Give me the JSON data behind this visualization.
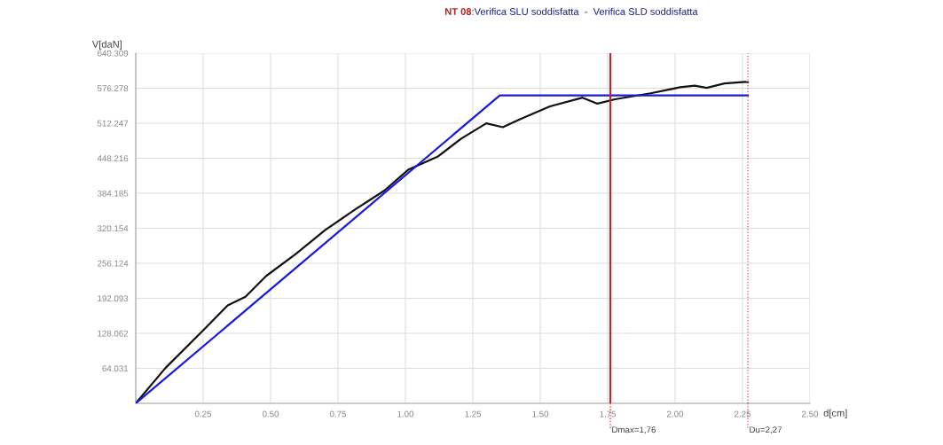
{
  "chart_data": {
    "type": "line",
    "title": "NT 08",
    "subtitle": ":Verifica SLU soddisfatta  -  Verifica SLD soddisfatta",
    "xlabel": "d[cm]",
    "ylabel": "V[daN]",
    "xlim": [
      0,
      2.5
    ],
    "xticks": [
      0.25,
      {
        "value": 0.5,
        "label": "0.50"
      },
      0.75,
      {
        "value": 1,
        "label": "1.00"
      },
      1.25,
      {
        "value": 1.5,
        "label": "1.50"
      },
      1.75,
      {
        "value": 2,
        "label": "2.00"
      },
      2.25,
      {
        "value": 2.5,
        "label": "2.50"
      }
    ],
    "ylim": [
      0,
      640.309
    ],
    "yticks": [
      64.031,
      128.062,
      192.093,
      256.124,
      320.154,
      384.185,
      448.216,
      512.247,
      576.278,
      640.309
    ],
    "grid": true,
    "legend": false,
    "series": [
      {
        "color": "#111111",
        "x": [
          0,
          0.111,
          0.253,
          0.341,
          0.407,
          0.484,
          0.593,
          0.703,
          0.812,
          0.922,
          1.01,
          1.119,
          1.207,
          1.3,
          1.361,
          1.427,
          1.536,
          1.657,
          1.712,
          1.777,
          1.909,
          2.019,
          2.073,
          2.117,
          2.183,
          2.26,
          2.27
        ],
        "values": [
          0,
          65,
          135,
          179,
          195,
          233,
          273,
          317,
          354,
          389,
          427,
          451,
          484,
          512,
          505,
          520,
          543,
          559,
          548,
          556,
          567,
          578,
          581,
          577,
          585,
          588,
          587
        ]
      },
      {
        "color": "#1a1adc",
        "x": [
          0,
          1.35,
          2.27
        ],
        "values": [
          0,
          563,
          563
        ]
      }
    ],
    "ref_lines": [
      {
        "axis": "x",
        "value": 1.76,
        "label": "Dmax=1,76",
        "color": "#cc2020",
        "line_style": "solid"
      },
      {
        "axis": "x",
        "value": 2.27,
        "label": "Du=2,27",
        "color": "#d05050",
        "line_style": "dotted"
      }
    ]
  }
}
